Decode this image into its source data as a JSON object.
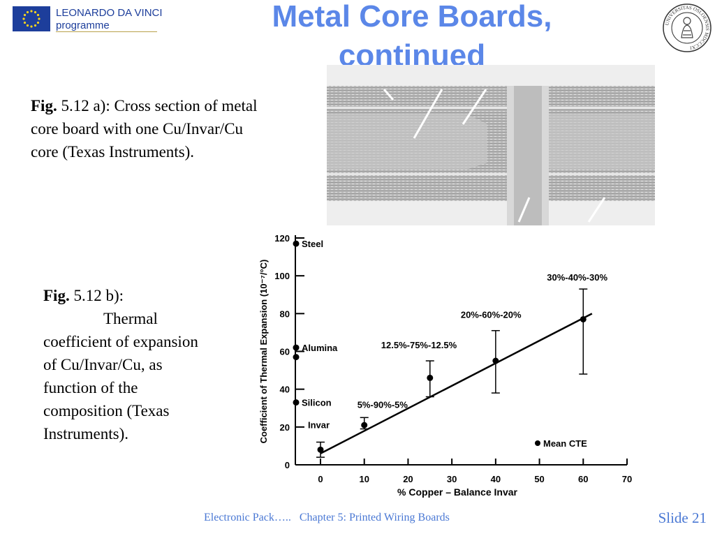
{
  "header": {
    "logo_line1": "LEONARDO DA VINCI",
    "logo_line2": "programme",
    "seal_text": "UNIVERSITAS OSLOENSIS MDCCCXI"
  },
  "title": {
    "line1": "Metal Core Boards,",
    "line2": "continued"
  },
  "caption_a": {
    "fig": "Fig.",
    "text": "5.12 a): Cross section of metal core board with one Cu/Invar/Cu core (Texas Instruments)."
  },
  "caption_b": {
    "fig": "Fig.",
    "head": "5.12 b):",
    "word": "Thermal",
    "text": "coefficient of expansion of Cu/Invar/Cu, as function of the composition (Texas Instruments)."
  },
  "chart_data": {
    "type": "scatter",
    "xlabel": "% Copper – Balance Invar",
    "ylabel": "Coefficient of Thermal Expansion (10⁻⁷/°C)",
    "xlim": [
      0,
      70
    ],
    "ylim": [
      0,
      120
    ],
    "xticks": [
      0,
      10,
      20,
      30,
      40,
      50,
      60,
      70
    ],
    "yticks": [
      0,
      20,
      40,
      60,
      80,
      100,
      120
    ],
    "legend": "Mean CTE",
    "legend_position": "bottom-right",
    "points": [
      {
        "x": 0,
        "y": 8,
        "err_low": 4,
        "err_high": 12,
        "label": "Invar"
      },
      {
        "x": 10,
        "y": 21,
        "err_low": 19,
        "err_high": 25,
        "label": "5%-90%-5%"
      },
      {
        "x": 25,
        "y": 46,
        "err_low": 36,
        "err_high": 55,
        "label": "12.5%-75%-12.5%"
      },
      {
        "x": 40,
        "y": 55,
        "err_low": 38,
        "err_high": 71,
        "label": "20%-60%-20%"
      },
      {
        "x": 60,
        "y": 77,
        "err_low": 48,
        "err_high": 93,
        "label": "30%-40%-30%"
      }
    ],
    "reference_points": [
      {
        "y": 117,
        "label": "Steel"
      },
      {
        "y": 62,
        "label": "Alumina"
      },
      {
        "y": 57,
        "label": ""
      },
      {
        "y": 33,
        "label": "Silicon"
      }
    ],
    "fit_line": {
      "x": [
        0,
        62
      ],
      "y": [
        6,
        80
      ]
    }
  },
  "footer": {
    "text": "Electronic Pack…..   Chapter 5: Printed Wiring Boards",
    "slide": "Slide 21"
  }
}
